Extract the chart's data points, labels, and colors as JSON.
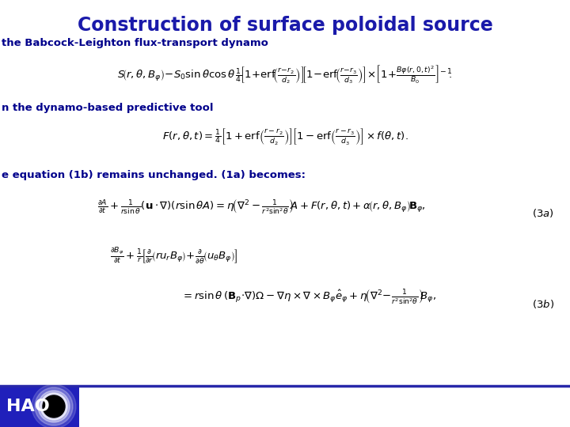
{
  "title": "Construction of surface poloidal source",
  "title_color": "#1a1aaa",
  "title_fontsize": 17,
  "bg_color": "#ffffff",
  "subtitle1": "the Babcock-Leighton flux-transport dynamo",
  "subtitle1_color": "#00008B",
  "subtitle1_fontsize": 9.5,
  "subtitle2": "n the dynamo-based predictive tool",
  "subtitle2_color": "#00008B",
  "subtitle2_fontsize": 9.5,
  "subtitle3": "e equation (1b) remains unchanged. (1a) becomes:",
  "subtitle3_color": "#00008B",
  "subtitle3_fontsize": 9.5,
  "eq_fontsize": 9.5,
  "eq1_fontsize": 9.5,
  "eq2_fontsize": 9.5,
  "bottom_bar_color": "#2828aa",
  "hao_bg_color": "#2020bb",
  "label_color": "#000000"
}
